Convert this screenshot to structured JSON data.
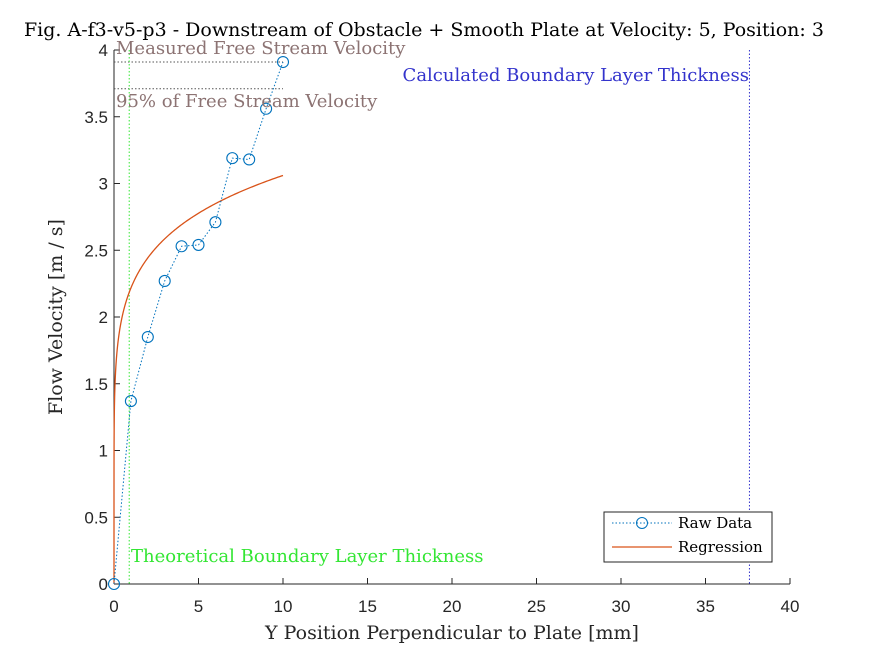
{
  "chart_data": {
    "type": "scatter",
    "title": "Fig. A-f3-v5-p3 - Downstream of Obstacle + Smooth Plate at Velocity: 5, Position: 3",
    "xlabel": "Y Position Perpendicular to Plate [mm]",
    "ylabel": "Flow Velocity [m / s]",
    "xlim": [
      0,
      40
    ],
    "ylim": [
      0,
      4
    ],
    "xticks": [
      0,
      5,
      10,
      15,
      20,
      25,
      30,
      35,
      40
    ],
    "yticks": [
      0,
      0.5,
      1,
      1.5,
      2,
      2.5,
      3,
      3.5,
      4
    ],
    "xtick_labels": [
      "0",
      "5",
      "10",
      "15",
      "20",
      "25",
      "30",
      "35",
      "40"
    ],
    "ytick_labels": [
      "0",
      "0.5",
      "1",
      "1.5",
      "2",
      "2.5",
      "3",
      "3.5",
      "4"
    ],
    "grid": false,
    "legend_position": "bottom-right",
    "series": [
      {
        "name": "Raw Data",
        "style": "dotted line with circle markers",
        "color": "#0072BD",
        "x": [
          0,
          1,
          2,
          3,
          4,
          5,
          6,
          7,
          8,
          9,
          10
        ],
        "y": [
          0,
          1.37,
          1.85,
          2.27,
          2.53,
          2.54,
          2.71,
          3.19,
          3.18,
          3.56,
          3.91
        ]
      },
      {
        "name": "Regression",
        "style": "solid line",
        "color": "#D95319",
        "power_law": {
          "coefficient": 2.217,
          "exponent": 0.14
        },
        "x_range": [
          0,
          10
        ]
      }
    ],
    "annotations": {
      "measured_free_stream": {
        "label": "Measured Free Stream Velocity",
        "y": 3.91,
        "color": "#8C7373"
      },
      "ninety_five_percent": {
        "label": "95% of Free Stream Velocity",
        "y": 3.71,
        "color": "#8C7373"
      },
      "theoretical_thickness": {
        "label": "Theoretical Boundary Layer Thickness",
        "x": 0.9,
        "color": "#33E633"
      },
      "calculated_thickness": {
        "label": "Calculated Boundary Layer Thickness",
        "x": 37.6,
        "color": "#3333CC"
      }
    }
  }
}
